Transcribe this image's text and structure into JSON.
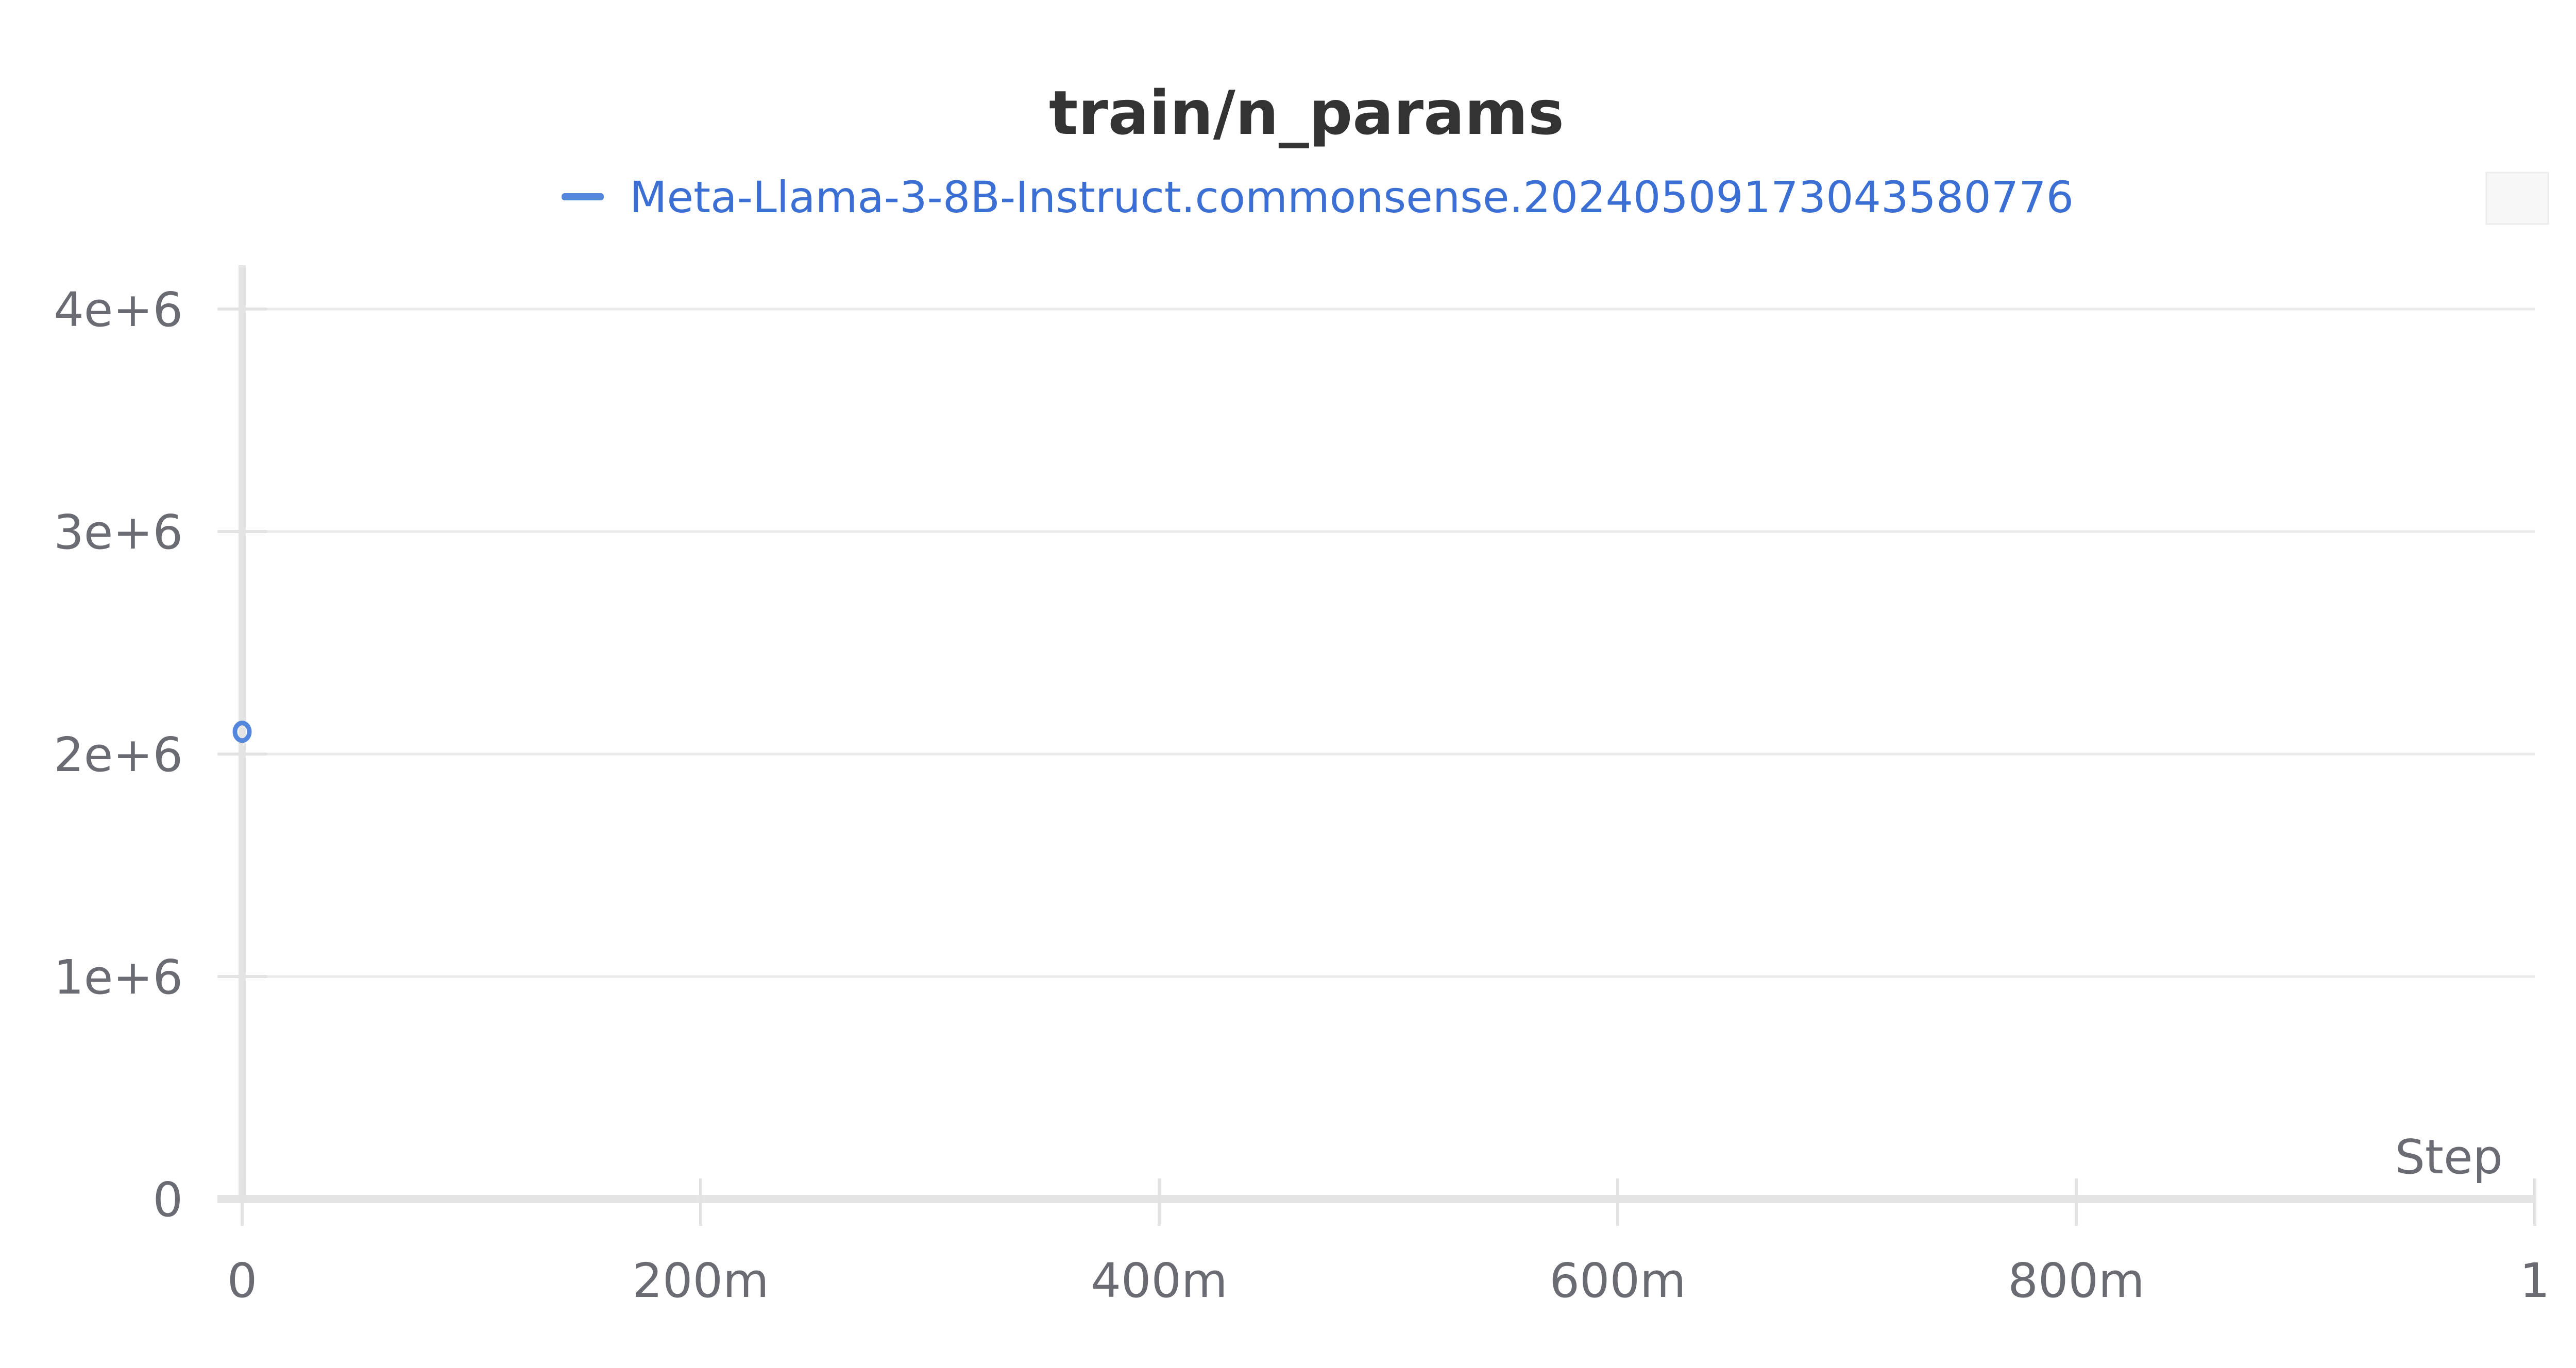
{
  "chart_data": {
    "type": "scatter",
    "title": "train/n_params",
    "xlabel": "Step",
    "ylabel": "",
    "xlim": [
      0,
      1
    ],
    "ylim": [
      0,
      4000000
    ],
    "x_ticks": [
      {
        "value": 0,
        "label": "0"
      },
      {
        "value": 0.2,
        "label": "200m"
      },
      {
        "value": 0.4,
        "label": "400m"
      },
      {
        "value": 0.6,
        "label": "600m"
      },
      {
        "value": 0.8,
        "label": "800m"
      },
      {
        "value": 1,
        "label": "1"
      }
    ],
    "y_ticks": [
      {
        "value": 0,
        "label": "0"
      },
      {
        "value": 1000000,
        "label": "1e+6"
      },
      {
        "value": 2000000,
        "label": "2e+6"
      },
      {
        "value": 3000000,
        "label": "3e+6"
      },
      {
        "value": 4000000,
        "label": "4e+6"
      }
    ],
    "grid": true,
    "legend_position": "top-center",
    "series": [
      {
        "name": "Meta-Llama-3-8B-Instruct.commonsense.20240509173043580776",
        "color": "#5387dd",
        "points": [
          {
            "x": 0,
            "y": 2100000
          }
        ]
      }
    ]
  }
}
